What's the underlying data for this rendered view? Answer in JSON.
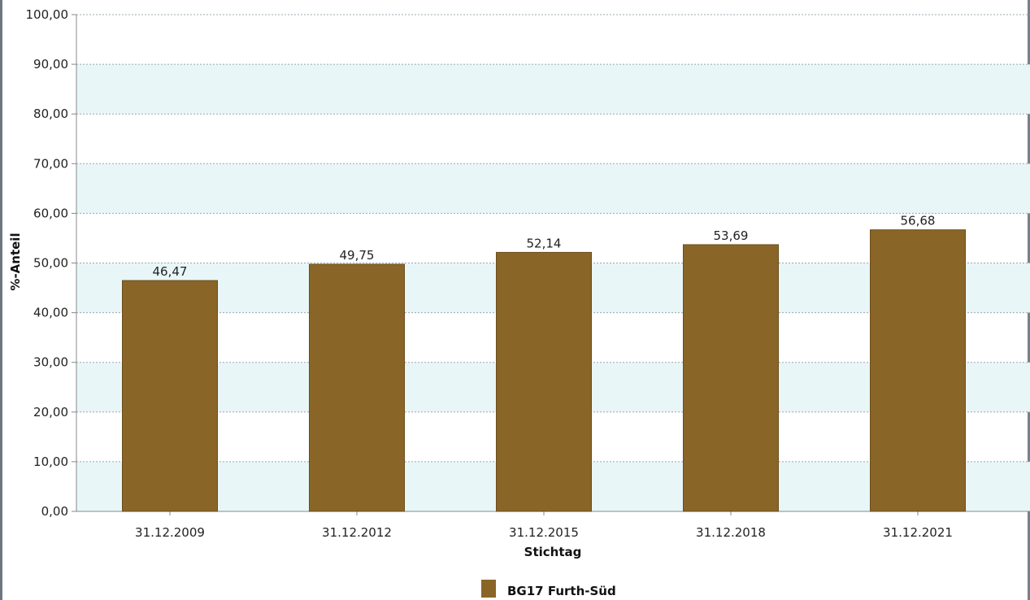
{
  "chart_data": {
    "type": "bar",
    "categories": [
      "31.12.2009",
      "31.12.2012",
      "31.12.2015",
      "31.12.2018",
      "31.12.2021"
    ],
    "series": [
      {
        "name": "BG17 Furth-Süd",
        "values": [
          46.47,
          49.75,
          52.14,
          53.69,
          56.68
        ],
        "color": "#8a6528"
      }
    ],
    "value_labels": [
      "46,47",
      "49,75",
      "52,14",
      "53,69",
      "56,68"
    ],
    "y_ticks": [
      "0,00",
      "10,00",
      "20,00",
      "30,00",
      "40,00",
      "50,00",
      "60,00",
      "70,00",
      "80,00",
      "90,00",
      "100,00"
    ],
    "xlabel": "Stichtag",
    "ylabel": "%-Anteil",
    "ylim": [
      0,
      100
    ],
    "grid": true,
    "band_color": "#e8f6f8",
    "legend_position": "bottom-center"
  }
}
